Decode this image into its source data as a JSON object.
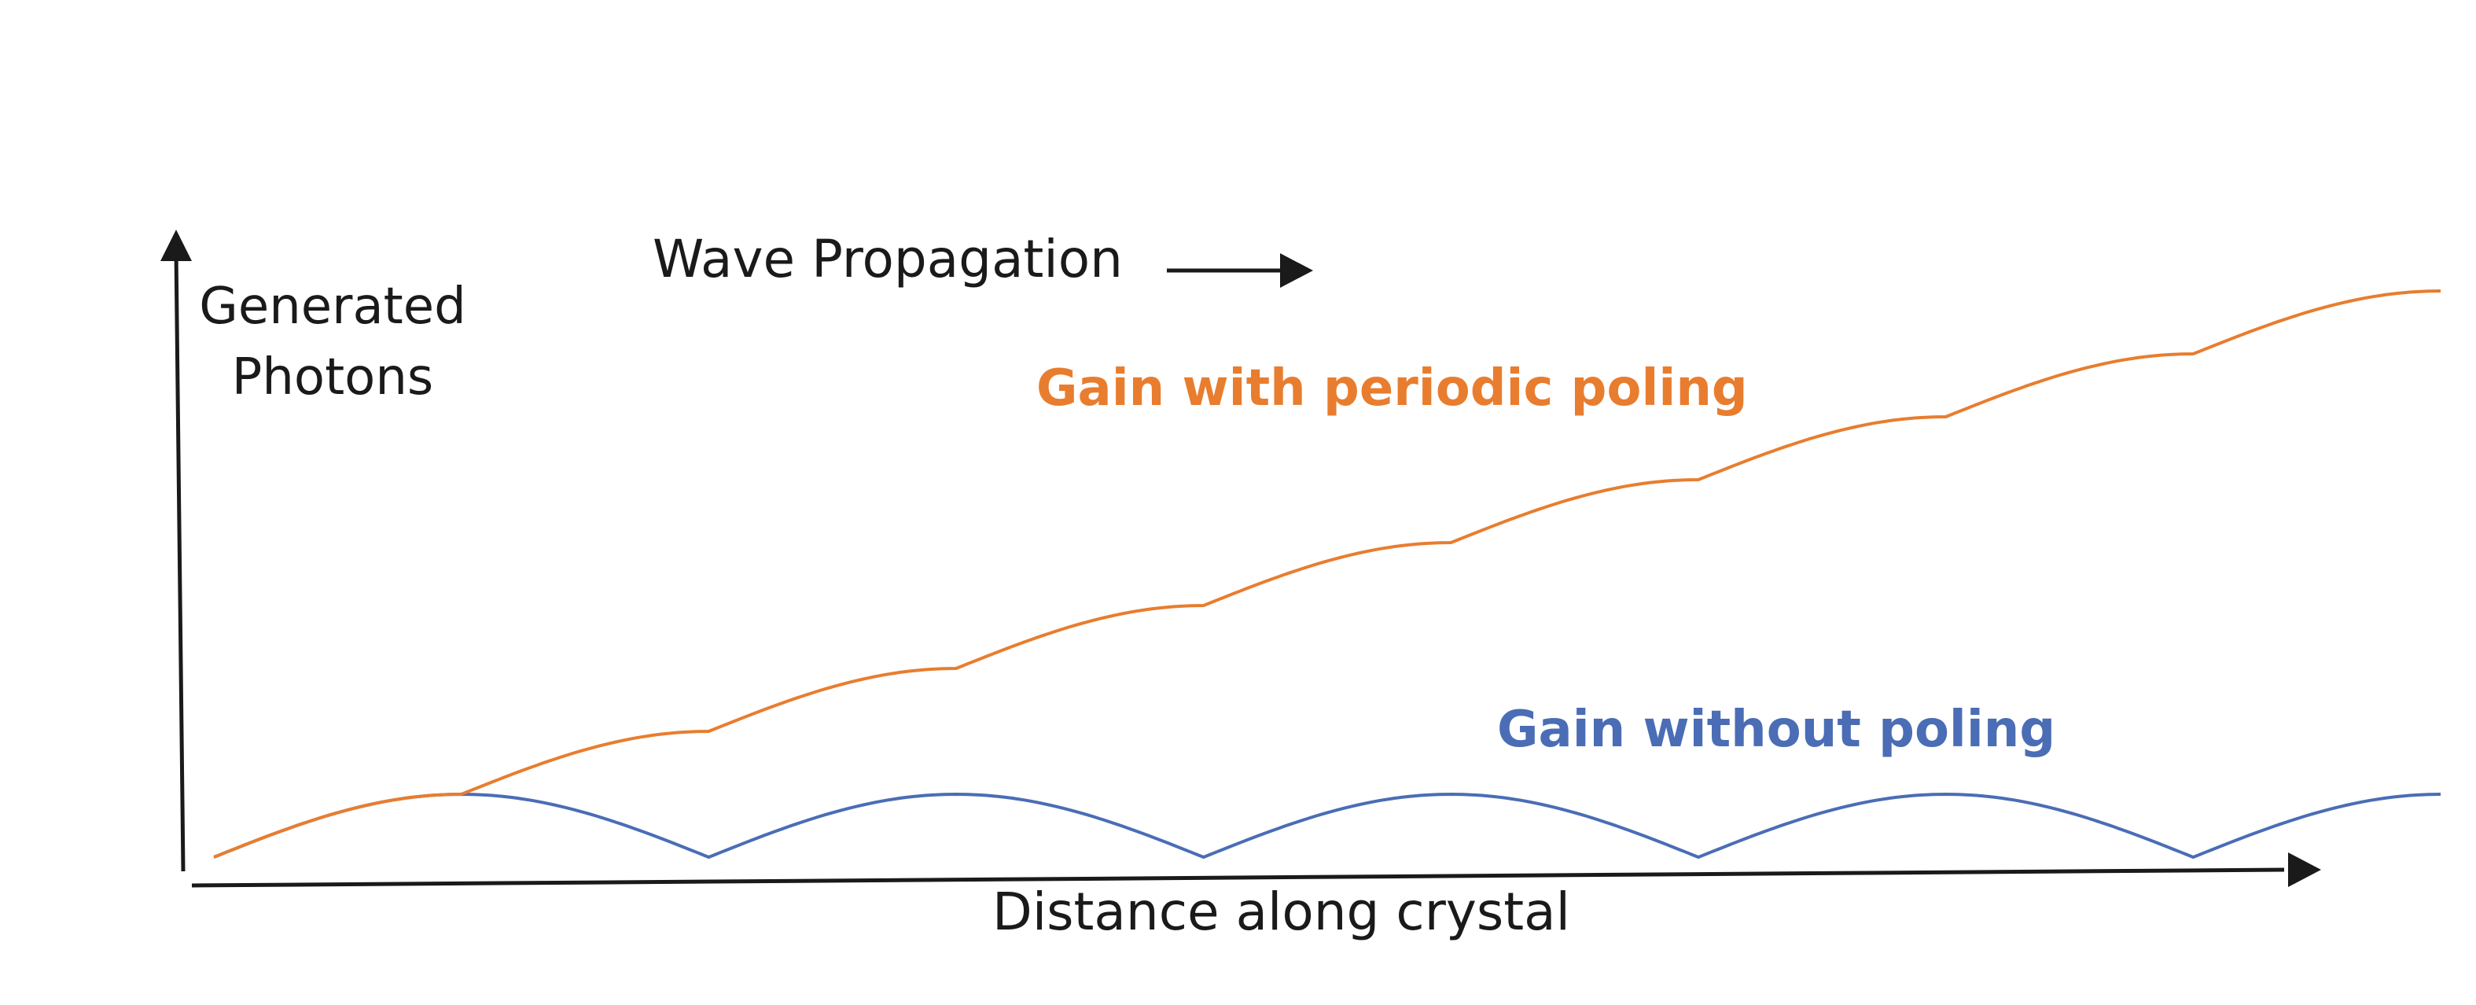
{
  "labels": {
    "y_axis_line1": "Generated",
    "y_axis_line2": "Photons",
    "x_axis": "Distance along crystal",
    "wave": "Wave Propagation"
  },
  "colors": {
    "poled": "#E87D2F",
    "unpoled": "#4A6DB5",
    "axis": "#1a1a1a"
  },
  "chart_data": {
    "type": "line",
    "title": "",
    "xlabel": "Distance along crystal",
    "ylabel": "Generated Photons",
    "coherence_length_segments": 9,
    "series": [
      {
        "name": "Gain with periodic poling",
        "color": "#E87D2F",
        "segment_end_values": [
          1.0,
          2.0,
          3.0,
          4.0,
          5.0,
          6.0,
          7.0,
          8.0,
          9.0
        ]
      },
      {
        "name": "Gain without poling",
        "color": "#4A6DB5",
        "segment_end_values": [
          1.0,
          0.0,
          1.0,
          0.0,
          1.0,
          0.0,
          1.0,
          0.0,
          1.0
        ]
      }
    ]
  }
}
